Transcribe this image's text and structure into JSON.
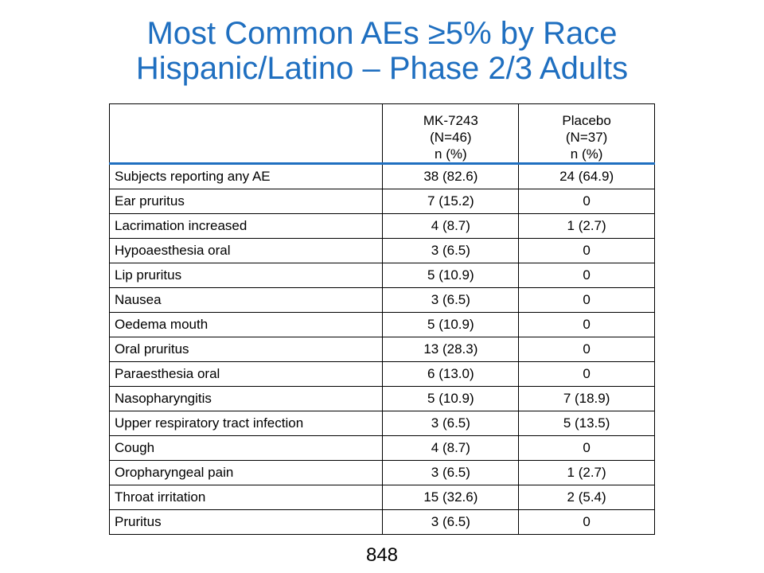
{
  "title": {
    "line1": "Most Common AEs ≥5% by Race",
    "line2": "Hispanic/Latino – Phase 2/3 Adults"
  },
  "table": {
    "headers": [
      {
        "lines": []
      },
      {
        "lines": [
          "MK-7243",
          "(N=46)",
          "n (%)"
        ]
      },
      {
        "lines": [
          "Placebo",
          "(N=37)",
          "n (%)"
        ]
      }
    ],
    "rows": [
      {
        "term": "Subjects reporting any AE",
        "mk": "38 (82.6)",
        "placebo": "24 (64.9)"
      },
      {
        "term": "Ear pruritus",
        "mk": "7 (15.2)",
        "placebo": "0"
      },
      {
        "term": "Lacrimation increased",
        "mk": "4 (8.7)",
        "placebo": "1 (2.7)"
      },
      {
        "term": "Hypoaesthesia oral",
        "mk": "3 (6.5)",
        "placebo": "0"
      },
      {
        "term": "Lip pruritus",
        "mk": "5 (10.9)",
        "placebo": "0"
      },
      {
        "term": "Nausea",
        "mk": "3 (6.5)",
        "placebo": "0"
      },
      {
        "term": "Oedema mouth",
        "mk": "5 (10.9)",
        "placebo": "0"
      },
      {
        "term": "Oral pruritus",
        "mk": "13 (28.3)",
        "placebo": "0"
      },
      {
        "term": "Paraesthesia oral",
        "mk": "6 (13.0)",
        "placebo": "0"
      },
      {
        "term": "Nasopharyngitis",
        "mk": "5 (10.9)",
        "placebo": "7 (18.9)"
      },
      {
        "term": "Upper respiratory tract infection",
        "mk": "3 (6.5)",
        "placebo": "5 (13.5)"
      },
      {
        "term": "Cough",
        "mk": "4 (8.7)",
        "placebo": "0"
      },
      {
        "term": "Oropharyngeal pain",
        "mk": "3 (6.5)",
        "placebo": "1 (2.7)"
      },
      {
        "term": "Throat irritation",
        "mk": "15 (32.6)",
        "placebo": "2 (5.4)"
      },
      {
        "term": "Pruritus",
        "mk": "3 (6.5)",
        "placebo": "0"
      }
    ]
  },
  "page_number": "848",
  "colors": {
    "title": "#1f6fc0",
    "header_rule": "#1f6fc0",
    "text": "#000000"
  }
}
